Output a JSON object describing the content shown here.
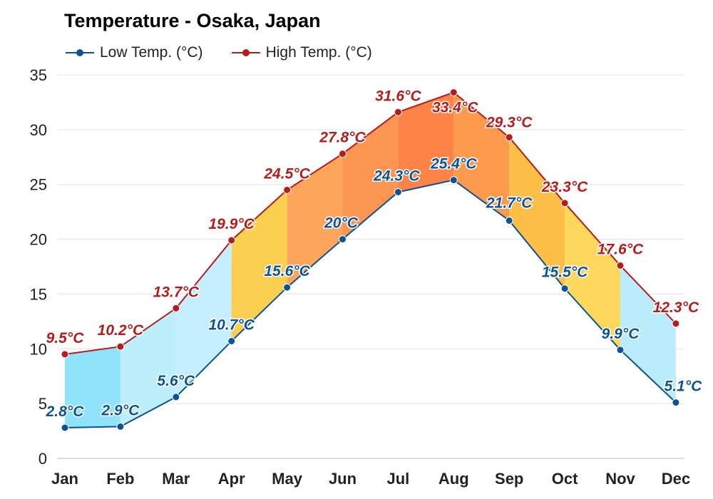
{
  "title": "Temperature - Osaka, Japan",
  "legend": [
    {
      "label": "Low Temp. (°C)",
      "color": "#0b5394"
    },
    {
      "label": "High Temp. (°C)",
      "color": "#b71c1c"
    }
  ],
  "chart_data": {
    "type": "line",
    "title": "Temperature - Osaka, Japan",
    "categories": [
      "Jan",
      "Feb",
      "Mar",
      "Apr",
      "May",
      "Jun",
      "Jul",
      "Aug",
      "Sep",
      "Oct",
      "Nov",
      "Dec"
    ],
    "series": [
      {
        "name": "Low Temp. (°C)",
        "values": [
          2.8,
          2.9,
          5.6,
          10.7,
          15.6,
          20,
          24.3,
          25.4,
          21.7,
          15.5,
          9.9,
          5.1
        ],
        "labels": [
          "2.8°C",
          "2.9°C",
          "5.6°C",
          "10.7°C",
          "15.6°C",
          "20°C",
          "24.3°C",
          "25.4°C",
          "21.7°C",
          "15.5°C",
          "9.9°C",
          "5.1°C"
        ],
        "color": "#0b5394"
      },
      {
        "name": "High Temp. (°C)",
        "values": [
          9.5,
          10.2,
          13.7,
          19.9,
          24.5,
          27.8,
          31.6,
          33.4,
          29.3,
          23.3,
          17.6,
          12.3
        ],
        "labels": [
          "9.5°C",
          "10.2°C",
          "13.7°C",
          "19.9°C",
          "24.5°C",
          "27.8°C",
          "31.6°C",
          "33.4°C",
          "29.3°C",
          "23.3°C",
          "17.6°C",
          "12.3°C"
        ],
        "color": "#b71c1c"
      }
    ],
    "yticks": [
      0,
      5,
      10,
      15,
      20,
      25,
      30,
      35
    ],
    "ylim": [
      0,
      35
    ],
    "grid": true,
    "legend_position": "top-left",
    "band_colors": [
      "#8fe3fa",
      "#bdeefc",
      "#c5efff",
      "#fbcf50",
      "#fda55a",
      "#fe9653",
      "#fe8346",
      "#fe9a4e",
      "#fdbf48",
      "#fed85c",
      "#bbecfb",
      "#b4ebfd"
    ]
  }
}
